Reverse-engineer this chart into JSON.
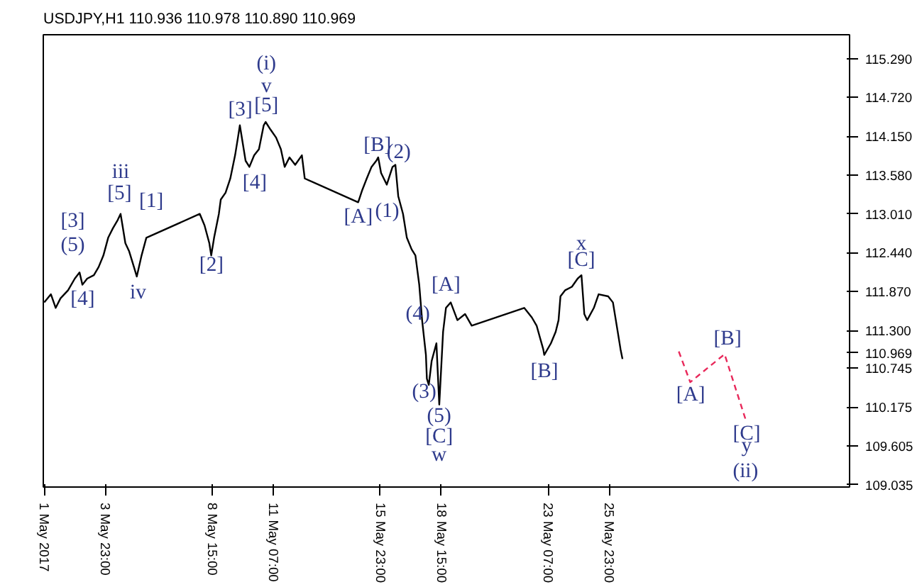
{
  "chart_data": {
    "type": "line",
    "title": "USDJPY,H1  110.936 110.978 110.890 110.969",
    "xlim": [
      "2017-05-01T06:00",
      "2017-06-05T11:00"
    ],
    "ylim": [
      109.0,
      115.64
    ],
    "xticks": [
      {
        "value": "2017-05-01T07:00",
        "label": "1 May 2017"
      },
      {
        "value": "2017-05-03T23:00",
        "label": "3 May 23:00"
      },
      {
        "value": "2017-05-08T15:00",
        "label": "8 May 15:00"
      },
      {
        "value": "2017-05-11T07:00",
        "label": "11 May 07:00"
      },
      {
        "value": "2017-05-15T23:00",
        "label": "15 May 23:00"
      },
      {
        "value": "2017-05-18T15:00",
        "label": "18 May 15:00"
      },
      {
        "value": "2017-05-23T07:00",
        "label": "23 May 07:00"
      },
      {
        "value": "2017-05-25T23:00",
        "label": "25 May 23:00"
      }
    ],
    "yticks": [
      {
        "value": 115.29,
        "label": "115.290"
      },
      {
        "value": 114.72,
        "label": "114.720"
      },
      {
        "value": 114.15,
        "label": "114.150"
      },
      {
        "value": 113.58,
        "label": "113.580"
      },
      {
        "value": 113.01,
        "label": "113.010"
      },
      {
        "value": 112.44,
        "label": "112.440"
      },
      {
        "value": 111.87,
        "label": "111.870"
      },
      {
        "value": 111.3,
        "label": "111.300"
      },
      {
        "value": 110.969,
        "label": "110.969"
      },
      {
        "value": 110.745,
        "label": "110.745"
      },
      {
        "value": 110.175,
        "label": "110.175"
      },
      {
        "value": 109.605,
        "label": "109.605"
      },
      {
        "value": 109.035,
        "label": "109.035"
      }
    ],
    "grid": false,
    "series": [
      {
        "color": "#000000",
        "line_style": "solid",
        "x": [
          "2017-05-01T07:00",
          "2017-05-01T14:00",
          "2017-05-01T19:00",
          "2017-05-02T00:00",
          "2017-05-02T08:00",
          "2017-05-02T15:00",
          "2017-05-02T20:00",
          "2017-05-02T23:00",
          "2017-05-03T04:00",
          "2017-05-03T11:00",
          "2017-05-03T16:00",
          "2017-05-03T21:00",
          "2017-05-04T02:00",
          "2017-05-04T07:00",
          "2017-05-04T12:00",
          "2017-05-04T15:00",
          "2017-05-04T17:00",
          "2017-05-04T20:00",
          "2017-05-05T00:00",
          "2017-05-05T05:00",
          "2017-05-05T08:00",
          "2017-05-05T13:00",
          "2017-05-05T18:00",
          "2017-05-08T02:00",
          "2017-05-08T07:00",
          "2017-05-08T12:00",
          "2017-05-08T14:00",
          "2017-05-08T17:00",
          "2017-05-08T22:00",
          "2017-05-09T00:00",
          "2017-05-09T05:00",
          "2017-05-09T10:00",
          "2017-05-09T15:00",
          "2017-05-09T18:00",
          "2017-05-09T20:00",
          "2017-05-09T23:00",
          "2017-05-10T02:00",
          "2017-05-10T06:00",
          "2017-05-10T11:00",
          "2017-05-10T16:00",
          "2017-05-10T21:00",
          "2017-05-10T23:00",
          "2017-05-11T04:00",
          "2017-05-11T10:00",
          "2017-05-11T15:00",
          "2017-05-11T19:00",
          "2017-05-12T00:00",
          "2017-05-12T06:00",
          "2017-05-12T13:00",
          "2017-05-12T16:00",
          "2017-05-15T00:00",
          "2017-05-15T04:00",
          "2017-05-15T09:00",
          "2017-05-15T14:00",
          "2017-05-15T19:00",
          "2017-05-15T21:00",
          "2017-05-16T00:00",
          "2017-05-16T06:00",
          "2017-05-16T12:00",
          "2017-05-16T15:00",
          "2017-05-16T18:00",
          "2017-05-16T23:00",
          "2017-05-17T03:00",
          "2017-05-17T08:00",
          "2017-05-17T12:00",
          "2017-05-17T16:00",
          "2017-05-17T19:00",
          "2017-05-17T23:00",
          "2017-05-18T00:00",
          "2017-05-18T02:00",
          "2017-05-18T05:00",
          "2017-05-18T10:00",
          "2017-05-18T13:00",
          "2017-05-18T17:00",
          "2017-05-18T20:00",
          "2017-05-19T01:00",
          "2017-05-19T08:00",
          "2017-05-19T16:00",
          "2017-05-19T23:00",
          "2017-05-22T06:00",
          "2017-05-22T14:00",
          "2017-05-22T19:00",
          "2017-05-23T02:00",
          "2017-05-23T03:00",
          "2017-05-23T10:00",
          "2017-05-23T15:00",
          "2017-05-23T18:00",
          "2017-05-23T20:00",
          "2017-05-24T01:00",
          "2017-05-24T08:00",
          "2017-05-24T14:00",
          "2017-05-24T18:00",
          "2017-05-24T21:00",
          "2017-05-25T00:00",
          "2017-05-25T07:00",
          "2017-05-25T12:00",
          "2017-05-25T22:00",
          "2017-05-26T03:00",
          "2017-05-26T08:00",
          "2017-05-26T11:00",
          "2017-05-26T13:00"
        ],
        "values": [
          111.71,
          111.83,
          111.63,
          111.77,
          111.89,
          112.06,
          112.15,
          111.97,
          112.06,
          112.11,
          112.23,
          112.4,
          112.66,
          112.8,
          112.92,
          113.01,
          112.84,
          112.58,
          112.46,
          112.23,
          112.09,
          112.4,
          112.66,
          113.01,
          112.84,
          112.58,
          112.4,
          112.66,
          113.01,
          113.22,
          113.32,
          113.53,
          113.87,
          114.13,
          114.31,
          114.05,
          113.79,
          113.7,
          113.87,
          113.96,
          114.31,
          114.36,
          114.25,
          114.13,
          113.96,
          113.7,
          113.84,
          113.73,
          113.87,
          113.53,
          113.18,
          113.35,
          113.53,
          113.7,
          113.79,
          113.84,
          113.61,
          113.44,
          113.7,
          113.73,
          113.27,
          113.01,
          112.66,
          112.49,
          112.4,
          111.97,
          111.45,
          110.94,
          110.59,
          110.5,
          110.85,
          111.11,
          110.21,
          111.28,
          111.63,
          111.71,
          111.45,
          111.54,
          111.37,
          111.63,
          111.49,
          111.37,
          111.02,
          110.94,
          111.11,
          111.28,
          111.45,
          111.8,
          111.89,
          111.94,
          112.06,
          112.11,
          111.54,
          111.45,
          111.63,
          111.83,
          111.8,
          111.71,
          111.28,
          111.02,
          110.88
        ]
      },
      {
        "color": "#e8285a",
        "line_style": "dashed",
        "x": [
          "2017-05-29T00:00",
          "2017-05-29T12:00",
          "2017-05-31T00:00",
          "2017-05-31T23:00"
        ],
        "values": [
          110.99,
          110.54,
          110.95,
          109.95
        ]
      }
    ],
    "annotations": [
      "(i)",
      "v",
      "[5]",
      "[3]",
      "[4]",
      "[B]",
      "(2)",
      "[A]",
      "(1)",
      "iii",
      "[5]",
      "[1]",
      "[3]",
      "(5)",
      "[4]",
      "iv",
      "[2]",
      "(3)",
      "(5)",
      "[C]",
      "w",
      "(4)",
      "[A]",
      "[B]",
      "x",
      "[C]",
      "[A]",
      "[B]",
      "[C]",
      "y",
      "(ii)"
    ]
  }
}
